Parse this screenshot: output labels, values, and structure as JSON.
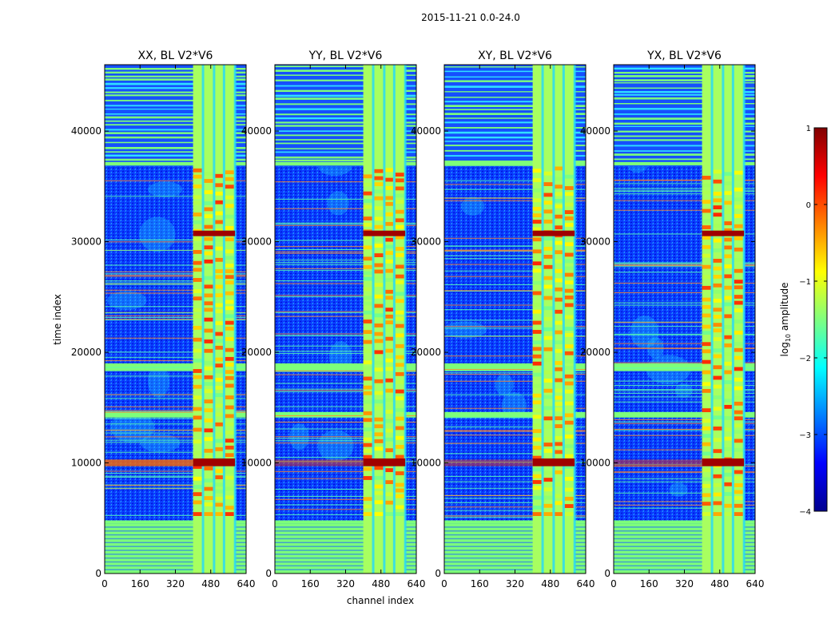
{
  "chart_data": {
    "type": "heatmap",
    "suptitle": "2015-11-21 0.0-24.0",
    "xlabel": "channel index",
    "ylabel": "time index",
    "x_ticks": [
      "0",
      "160",
      "320",
      "480",
      "640"
    ],
    "y_ticks": [
      "0",
      "10000",
      "20000",
      "30000",
      "40000"
    ],
    "xlim": [
      0,
      640
    ],
    "ylim": [
      0,
      46000
    ],
    "panels": [
      {
        "title": "XX, BL V2*V6",
        "pol": "XX"
      },
      {
        "title": "YY, BL V2*V6",
        "pol": "YY"
      },
      {
        "title": "XY, BL V2*V6",
        "pol": "XY"
      },
      {
        "title": "YX, BL V2*V6",
        "pol": "YX"
      }
    ],
    "colorbar": {
      "label_prefix": "log",
      "label_sub": "10",
      "label_suffix": " amplitude",
      "range": [
        -4,
        1
      ],
      "ticks": [
        "1",
        "0",
        "−1",
        "−2",
        "−3",
        "−4"
      ],
      "colormap": "jet"
    }
  }
}
